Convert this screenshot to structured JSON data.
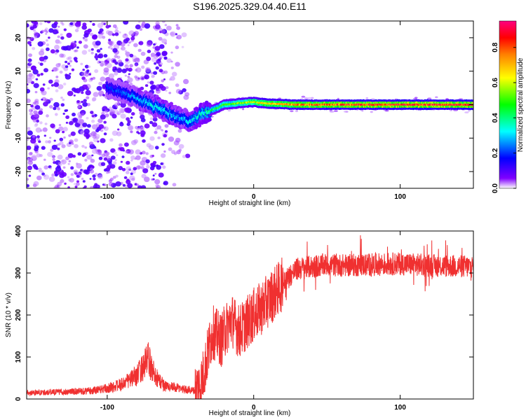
{
  "title": "S196.2025.329.04.40.E11",
  "chart_data": [
    {
      "type": "heatmap",
      "xlabel": "Height of straight line (km)",
      "ylabel": "Frequency (Hz)",
      "xlim": [
        -155,
        150
      ],
      "ylim": [
        -25,
        25
      ],
      "xticks": [
        "-100",
        "0",
        "100"
      ],
      "xtick_values": [
        -100,
        0,
        100
      ],
      "yticks": [
        "-20",
        "-10",
        "0",
        "10",
        "20"
      ],
      "ytick_values": [
        -20,
        -10,
        0,
        10,
        20
      ],
      "ridge": {
        "x": [
          -100,
          -90,
          -80,
          -70,
          -60,
          -50,
          -42,
          -36,
          -30,
          -25,
          -20,
          -10,
          0,
          10,
          30,
          60,
          100,
          150
        ],
        "frequency": [
          5,
          4,
          2,
          0,
          -2,
          -4,
          -5,
          -3,
          -2,
          -1,
          0,
          0.5,
          0.8,
          0.3,
          0,
          0,
          0,
          0
        ],
        "peak_amplitude": [
          0.2,
          0.25,
          0.3,
          0.35,
          0.35,
          0.3,
          0.35,
          0.4,
          0.45,
          0.5,
          0.55,
          0.6,
          0.7,
          0.75,
          0.85,
          0.9,
          0.95,
          0.95
        ]
      },
      "noise_region_x": [
        -155,
        -45
      ]
    },
    {
      "type": "colorbar",
      "label": "Normalized spectral amplitude",
      "range": [
        0,
        0.95
      ],
      "ticks": [
        "0.0",
        "0.2",
        "0.4",
        "0.6",
        "0.8"
      ],
      "tick_values": [
        0,
        0.2,
        0.4,
        0.6,
        0.8
      ],
      "colors": [
        "#ffffff",
        "#8000ff",
        "#0000ff",
        "#00ffff",
        "#00ff00",
        "#ffff00",
        "#ff8000",
        "#ff0000",
        "#ff0080"
      ]
    },
    {
      "type": "line",
      "xlabel": "Height of straight line (km)",
      "ylabel": "SNR (10 * v/v)",
      "xlim": [
        -155,
        150
      ],
      "ylim": [
        0,
        400
      ],
      "xticks": [
        "-100",
        "0",
        "100"
      ],
      "xtick_values": [
        -100,
        0,
        100
      ],
      "yticks": [
        "0",
        "100",
        "200",
        "300",
        "400"
      ],
      "ytick_values": [
        0,
        100,
        200,
        300,
        400
      ],
      "color": "#f03030",
      "series": [
        {
          "name": "SNR",
          "x": [
            -155,
            -130,
            -110,
            -100,
            -90,
            -80,
            -75,
            -72,
            -70,
            -65,
            -60,
            -50,
            -45,
            -40,
            -36,
            -33,
            -30,
            -28,
            -25,
            -22,
            -20,
            -15,
            -10,
            -5,
            0,
            5,
            10,
            15,
            20,
            25,
            30,
            40,
            50,
            60,
            80,
            100,
            120,
            150
          ],
          "values": [
            15,
            17,
            20,
            25,
            35,
            55,
            80,
            95,
            75,
            45,
            30,
            25,
            22,
            20,
            35,
            80,
            130,
            160,
            150,
            140,
            160,
            190,
            160,
            180,
            200,
            215,
            235,
            255,
            275,
            295,
            310,
            315,
            320,
            318,
            320,
            322,
            318,
            315
          ]
        }
      ]
    }
  ]
}
